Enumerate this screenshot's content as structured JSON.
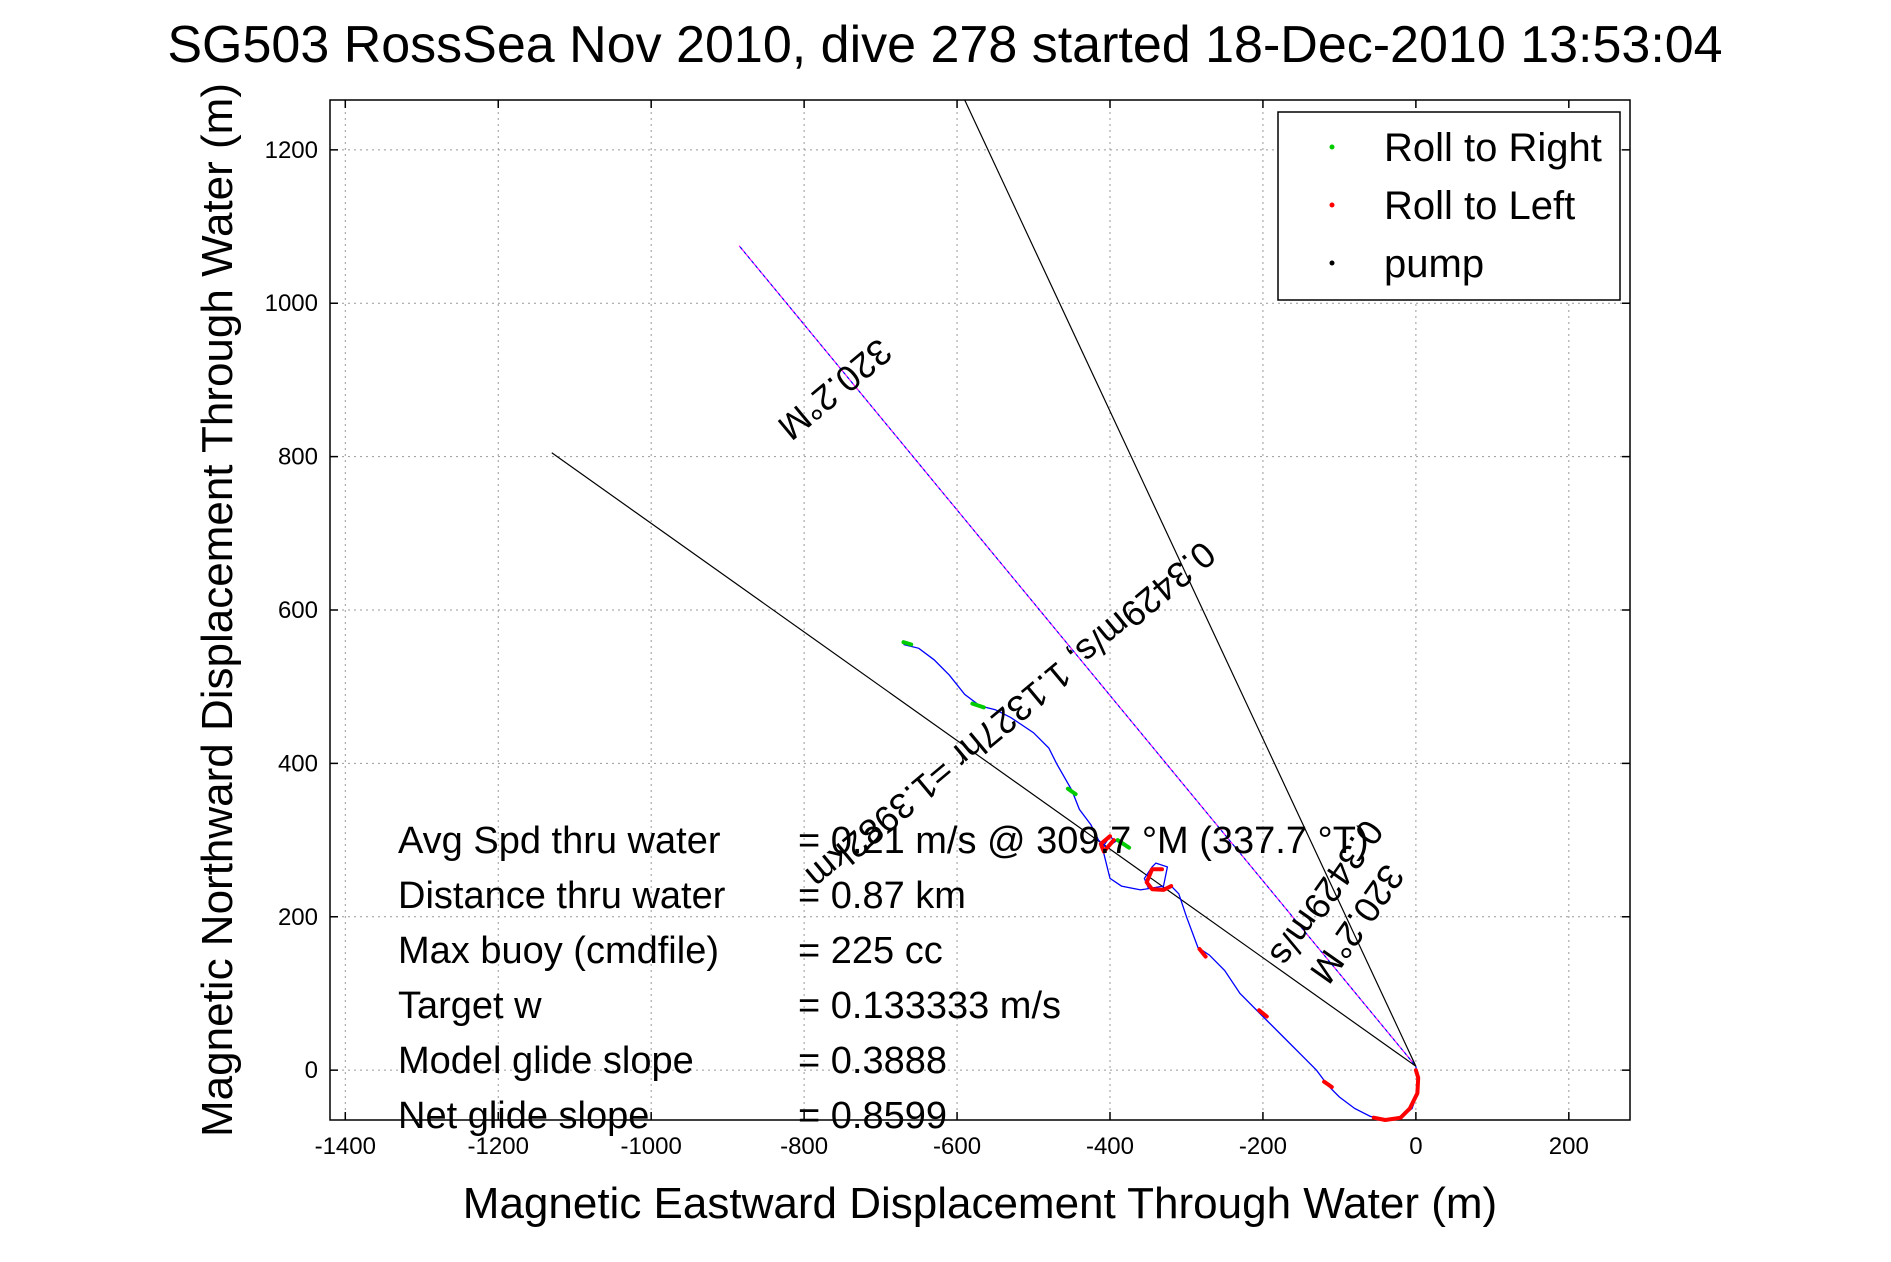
{
  "chart_data": {
    "type": "line",
    "title": "SG503 RossSea Nov 2010, dive 278 started 18-Dec-2010 13:53:04",
    "xlabel": "Magnetic Eastward Displacement Through Water (m)",
    "ylabel": "Magnetic Northward Displacement Through Water (m)",
    "xlim": [
      -1420,
      280
    ],
    "ylim": [
      -65,
      1265
    ],
    "grid": true,
    "xticks": [
      -1400,
      -1200,
      -1000,
      -800,
      -600,
      -400,
      -200,
      0,
      200
    ],
    "yticks": [
      0,
      200,
      400,
      600,
      800,
      1000,
      1200
    ],
    "legend": {
      "placement": "top-right",
      "entries": [
        {
          "label": "Roll to Right",
          "color": "#00cc00"
        },
        {
          "label": "Roll to Left",
          "color": "#ff0000"
        },
        {
          "label": "pump",
          "color": "#000000"
        }
      ]
    },
    "track": {
      "color": "#0000ff",
      "points": [
        [
          0,
          5
        ],
        [
          2,
          -10
        ],
        [
          2,
          -30
        ],
        [
          -5,
          -50
        ],
        [
          -20,
          -62
        ],
        [
          -40,
          -65
        ],
        [
          -60,
          -60
        ],
        [
          -80,
          -50
        ],
        [
          -100,
          -35
        ],
        [
          -115,
          -20
        ],
        [
          -130,
          0
        ],
        [
          -150,
          20
        ],
        [
          -170,
          40
        ],
        [
          -200,
          70
        ],
        [
          -230,
          100
        ],
        [
          -250,
          130
        ],
        [
          -270,
          150
        ],
        [
          -285,
          160
        ],
        [
          -300,
          200
        ],
        [
          -310,
          230
        ],
        [
          -320,
          240
        ],
        [
          -340,
          235
        ],
        [
          -350,
          238
        ],
        [
          -355,
          250
        ],
        [
          -345,
          265
        ],
        [
          -340,
          270
        ],
        [
          -325,
          265
        ],
        [
          -330,
          240
        ],
        [
          -360,
          235
        ],
        [
          -385,
          240
        ],
        [
          -400,
          250
        ],
        [
          -405,
          270
        ],
        [
          -410,
          290
        ],
        [
          -400,
          305
        ],
        [
          -395,
          300
        ],
        [
          -390,
          300
        ],
        [
          -405,
          290
        ],
        [
          -415,
          300
        ],
        [
          -420,
          310
        ],
        [
          -425,
          320
        ],
        [
          -440,
          340
        ],
        [
          -450,
          365
        ],
        [
          -470,
          400
        ],
        [
          -480,
          420
        ],
        [
          -500,
          440
        ],
        [
          -530,
          460
        ],
        [
          -550,
          470
        ],
        [
          -570,
          475
        ],
        [
          -590,
          490
        ],
        [
          -610,
          515
        ],
        [
          -630,
          535
        ],
        [
          -650,
          550
        ],
        [
          -670,
          555
        ]
      ]
    },
    "roll_right_segments": [
      [
        [
          -660,
          555
        ],
        [
          -670,
          558
        ]
      ],
      [
        [
          -565,
          473
        ],
        [
          -580,
          478
        ]
      ],
      [
        [
          -445,
          360
        ],
        [
          -455,
          367
        ]
      ],
      [
        [
          -375,
          290
        ],
        [
          -390,
          300
        ]
      ]
    ],
    "roll_left_segments": [
      [
        [
          0,
          0
        ],
        [
          3,
          -10
        ],
        [
          2,
          -30
        ],
        [
          -8,
          -50
        ],
        [
          -20,
          -62
        ],
        [
          -40,
          -65
        ],
        [
          -55,
          -62
        ]
      ],
      [
        [
          -110,
          -22
        ],
        [
          -120,
          -15
        ]
      ],
      [
        [
          -195,
          70
        ],
        [
          -205,
          78
        ]
      ],
      [
        [
          -275,
          148
        ],
        [
          -283,
          158
        ]
      ],
      [
        [
          -320,
          240
        ],
        [
          -330,
          235
        ],
        [
          -345,
          236
        ],
        [
          -352,
          245
        ],
        [
          -345,
          262
        ],
        [
          -332,
          262
        ]
      ],
      [
        [
          -400,
          305
        ],
        [
          -412,
          295
        ],
        [
          -408,
          285
        ],
        [
          -395,
          300
        ]
      ]
    ],
    "reference_lines": [
      {
        "points": [
          [
            0,
            5
          ],
          [
            -885,
            1075
          ]
        ],
        "color": "#ff00ff",
        "style": "dotted"
      },
      {
        "points": [
          [
            0,
            5
          ],
          [
            -885,
            1075
          ]
        ],
        "color": "#0000ff",
        "style": "dotted"
      },
      {
        "points": [
          [
            0,
            5
          ],
          [
            -1130,
            805
          ]
        ],
        "color": "#000000",
        "style": "solid"
      },
      {
        "points": [
          [
            0,
            5
          ],
          [
            -590,
            1265
          ]
        ],
        "color": "#000000",
        "style": "solid"
      }
    ],
    "annotations": [
      {
        "text": "320.2°M",
        "anchor": [
          -770,
          900
        ],
        "angle": 140.2
      },
      {
        "text": "0.3429m/s, 1.1327hr =1.3982km",
        "anchor": [
          -540,
          475
        ],
        "angle": 140.2
      },
      {
        "text": "0.3429m/s",
        "anchor": [
          -130,
          240
        ],
        "angle": 125
      },
      {
        "text": "320.2°M",
        "anchor": [
          -90,
          200
        ],
        "angle": 125
      }
    ],
    "stats": [
      {
        "label": "Avg Spd thru water",
        "value": "=  0.21 m/s @ 309.7 °M (337.7 °T)"
      },
      {
        "label": "Distance thru water",
        "value": "=  0.87 km"
      },
      {
        "label": "Max buoy (cmdfile)",
        "value": "= 225 cc"
      },
      {
        "label": "Target w",
        "value": "= 0.133333 m/s"
      },
      {
        "label": "Model glide slope",
        "value": "= 0.3888"
      },
      {
        "label": "Net glide slope",
        "value": "= 0.8599"
      }
    ]
  }
}
